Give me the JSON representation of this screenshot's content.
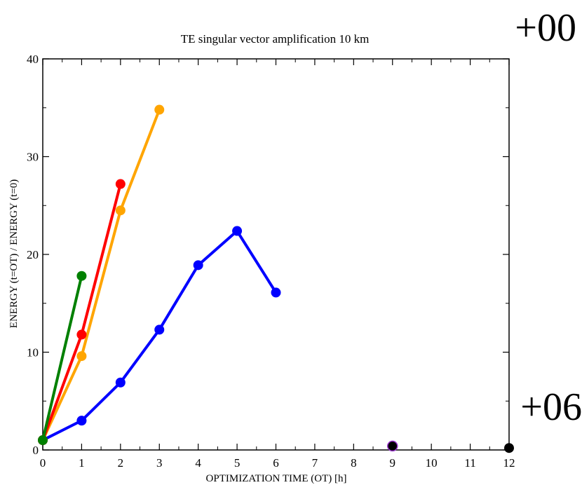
{
  "overlay": {
    "top_right_label": "+00",
    "bottom_right_label": "+06"
  },
  "chart_data": {
    "type": "line",
    "title": "TE singular vector amplification 10 km",
    "xlabel": "OPTIMIZATION TIME (OT) [h]",
    "ylabel": "ENERGY (t=OT) / ENERGY (t=0)",
    "xlim": [
      0,
      12
    ],
    "ylim": [
      0,
      40
    ],
    "xticks": [
      0,
      1,
      2,
      3,
      4,
      5,
      6,
      7,
      8,
      9,
      10,
      11,
      12
    ],
    "yticks": [
      0,
      10,
      20,
      30,
      40
    ],
    "xtick_labels": [
      "0",
      "1",
      "2",
      "3",
      "4",
      "5",
      "6",
      "7",
      "8",
      "9",
      "10",
      "11",
      "12"
    ],
    "ytick_labels": [
      "0",
      "10",
      "20",
      "30",
      "40"
    ],
    "grid": false,
    "legend": "none",
    "series": [
      {
        "color": "#0000ff",
        "x": [
          0,
          1,
          2,
          3,
          4,
          5,
          6
        ],
        "y": [
          1.0,
          3.0,
          6.9,
          12.3,
          18.9,
          22.4,
          16.1
        ]
      },
      {
        "color": "#ffa500",
        "x": [
          0,
          1,
          2,
          3
        ],
        "y": [
          1.0,
          9.6,
          24.5,
          34.8
        ]
      },
      {
        "color": "#ff0000",
        "x": [
          0,
          1,
          2
        ],
        "y": [
          1.0,
          11.8,
          27.2
        ]
      },
      {
        "color": "#008000",
        "x": [
          0,
          1
        ],
        "y": [
          1.0,
          17.8
        ]
      },
      {
        "color": "#000000",
        "edge_color": "#9932cc",
        "x": [
          9
        ],
        "y": [
          0.4
        ]
      },
      {
        "color": "#000000",
        "x": [
          12
        ],
        "y": [
          0.2
        ]
      }
    ]
  }
}
